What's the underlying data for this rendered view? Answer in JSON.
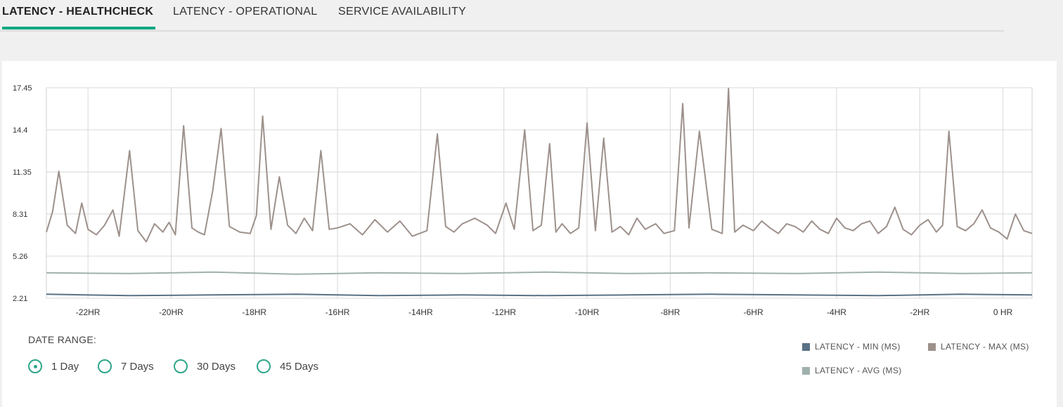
{
  "tabs": [
    {
      "label": "LATENCY - HEALTHCHECK",
      "active": true
    },
    {
      "label": "LATENCY - OPERATIONAL",
      "active": false
    },
    {
      "label": "SERVICE AVAILABILITY",
      "active": false
    }
  ],
  "date_range": {
    "label": "DATE RANGE:",
    "options": [
      {
        "label": "1 Day",
        "selected": true
      },
      {
        "label": "7 Days",
        "selected": false
      },
      {
        "label": "30 Days",
        "selected": false
      },
      {
        "label": "45 Days",
        "selected": false
      }
    ]
  },
  "colors": {
    "accent": "#01a982",
    "min": "#5a7184",
    "max": "#9d918c",
    "avg": "#9fb1ad"
  },
  "chart_data": {
    "type": "line",
    "x_range": [
      -23.0,
      0.7
    ],
    "ylim": [
      2.21,
      17.45
    ],
    "y_ticks": [
      "17.45",
      "14.4",
      "11.35",
      "8.31",
      "5.26",
      "2.21"
    ],
    "x_ticks": [
      {
        "x": -22,
        "label": "-22HR"
      },
      {
        "x": -20,
        "label": "-20HR"
      },
      {
        "x": -18,
        "label": "-18HR"
      },
      {
        "x": -16,
        "label": "-16HR"
      },
      {
        "x": -14,
        "label": "-14HR"
      },
      {
        "x": -12,
        "label": "-12HR"
      },
      {
        "x": -10,
        "label": "-10HR"
      },
      {
        "x": -8,
        "label": "-8HR"
      },
      {
        "x": -6,
        "label": "-6HR"
      },
      {
        "x": -4,
        "label": "-4HR"
      },
      {
        "x": -2,
        "label": "-2HR"
      },
      {
        "x": 0,
        "label": "0 HR"
      }
    ],
    "grid": true,
    "legend_position": "bottom-right",
    "series": [
      {
        "name": "LATENCY - MIN (MS)",
        "color": "#5a7184",
        "x": [
          -23.0,
          -21.0,
          -19.0,
          -17.0,
          -15.0,
          -13.0,
          -11.0,
          -9.0,
          -7.0,
          -5.0,
          -3.0,
          -1.0,
          0.7
        ],
        "y": [
          2.5,
          2.4,
          2.45,
          2.5,
          2.4,
          2.45,
          2.4,
          2.45,
          2.5,
          2.45,
          2.4,
          2.5,
          2.45
        ]
      },
      {
        "name": "LATENCY - MAX (MS)",
        "color": "#9d918c",
        "x": [
          -23.0,
          -22.85,
          -22.7,
          -22.5,
          -22.3,
          -22.15,
          -22.0,
          -21.8,
          -21.6,
          -21.4,
          -21.25,
          -21.0,
          -20.8,
          -20.6,
          -20.4,
          -20.2,
          -20.05,
          -19.9,
          -19.7,
          -19.5,
          -19.35,
          -19.2,
          -19.0,
          -18.8,
          -18.6,
          -18.35,
          -18.1,
          -17.95,
          -17.8,
          -17.6,
          -17.4,
          -17.2,
          -17.0,
          -16.8,
          -16.6,
          -16.4,
          -16.2,
          -16.0,
          -15.7,
          -15.4,
          -15.1,
          -14.8,
          -14.5,
          -14.2,
          -13.85,
          -13.6,
          -13.4,
          -13.2,
          -13.0,
          -12.7,
          -12.4,
          -12.2,
          -11.95,
          -11.75,
          -11.5,
          -11.3,
          -11.1,
          -10.9,
          -10.75,
          -10.6,
          -10.4,
          -10.2,
          -10.0,
          -9.8,
          -9.6,
          -9.4,
          -9.2,
          -9.0,
          -8.8,
          -8.6,
          -8.35,
          -8.15,
          -7.9,
          -7.7,
          -7.55,
          -7.3,
          -7.0,
          -6.75,
          -6.6,
          -6.45,
          -6.25,
          -6.0,
          -5.8,
          -5.6,
          -5.4,
          -5.2,
          -5.0,
          -4.8,
          -4.6,
          -4.4,
          -4.2,
          -4.0,
          -3.8,
          -3.6,
          -3.4,
          -3.2,
          -3.0,
          -2.8,
          -2.6,
          -2.4,
          -2.2,
          -2.0,
          -1.8,
          -1.6,
          -1.45,
          -1.3,
          -1.1,
          -0.9,
          -0.7,
          -0.5,
          -0.3,
          -0.1,
          0.1,
          0.3,
          0.5,
          0.7
        ],
        "y": [
          7.0,
          8.5,
          11.4,
          7.5,
          6.9,
          9.1,
          7.2,
          6.8,
          7.5,
          8.6,
          6.7,
          12.9,
          7.1,
          6.3,
          7.6,
          7.0,
          7.7,
          6.8,
          14.7,
          7.3,
          7.0,
          6.8,
          10.0,
          14.5,
          7.4,
          7.0,
          6.9,
          8.2,
          15.4,
          7.2,
          11.0,
          7.5,
          6.9,
          8.0,
          7.1,
          12.9,
          7.2,
          7.3,
          7.6,
          6.8,
          7.9,
          7.0,
          7.8,
          6.7,
          7.1,
          14.1,
          7.4,
          7.0,
          7.6,
          8.0,
          7.5,
          6.9,
          9.1,
          7.2,
          14.4,
          7.1,
          7.5,
          13.4,
          7.0,
          7.6,
          6.9,
          7.3,
          14.9,
          7.1,
          13.8,
          7.0,
          7.4,
          6.8,
          8.0,
          7.2,
          7.6,
          6.9,
          7.1,
          16.3,
          7.3,
          14.3,
          7.2,
          6.9,
          17.4,
          7.0,
          7.5,
          7.1,
          7.8,
          7.3,
          6.9,
          7.6,
          7.4,
          7.0,
          7.8,
          7.2,
          6.9,
          8.0,
          7.3,
          7.1,
          7.6,
          7.8,
          6.9,
          7.4,
          8.8,
          7.2,
          6.8,
          7.5,
          7.9,
          7.0,
          7.5,
          14.3,
          7.4,
          7.1,
          7.6,
          8.6,
          7.3,
          7.0,
          6.5,
          8.3,
          7.1,
          6.9
        ]
      },
      {
        "name": "LATENCY - AVG (MS)",
        "color": "#9fb1ad",
        "x": [
          -23.0,
          -21.0,
          -19.0,
          -17.0,
          -15.0,
          -13.0,
          -11.0,
          -9.0,
          -7.0,
          -5.0,
          -3.0,
          -1.0,
          0.7
        ],
        "y": [
          4.05,
          4.0,
          4.1,
          3.95,
          4.05,
          4.0,
          4.1,
          4.0,
          4.05,
          4.0,
          4.1,
          4.0,
          4.05
        ]
      }
    ]
  }
}
